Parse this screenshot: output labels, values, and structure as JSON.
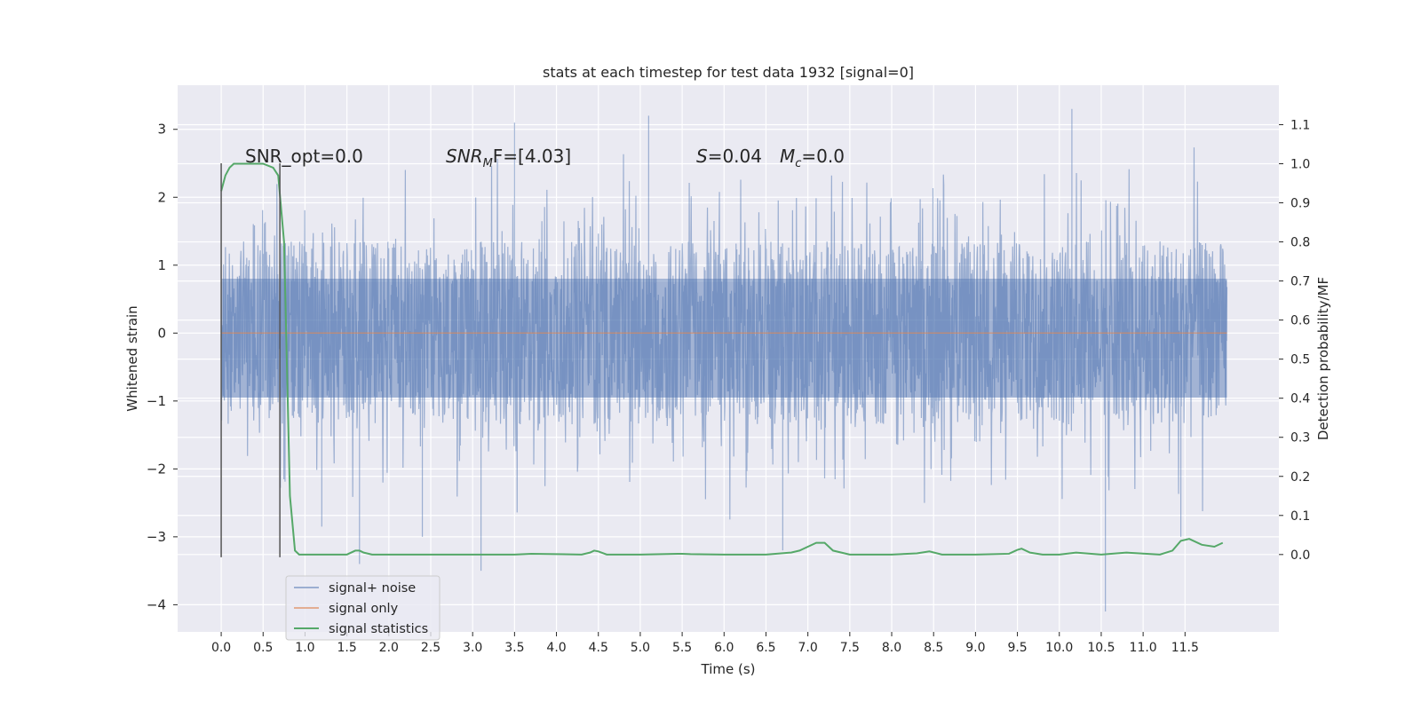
{
  "chart_data": {
    "type": "line",
    "title": "stats at each timestep for test data 1932 [signal=0]",
    "xlabel": "Time (s)",
    "ylabel": "Whitened strain",
    "y2label": "Detection probability/MF",
    "xlim": [
      -0.52,
      12.62
    ],
    "ylim": [
      -4.4,
      3.65
    ],
    "y2lim": [
      -0.198,
      1.201
    ],
    "xticks": [
      0.0,
      0.5,
      1.0,
      1.5,
      2.0,
      2.5,
      3.0,
      3.5,
      4.0,
      4.5,
      5.0,
      5.5,
      6.0,
      6.5,
      7.0,
      7.5,
      8.0,
      8.5,
      9.0,
      9.5,
      10.0,
      10.5,
      11.0,
      11.5
    ],
    "xtick_labels": [
      "0.0",
      "0.5",
      "1.0",
      "1.5",
      "2.0",
      "2.5",
      "3.0",
      "3.5",
      "4.0",
      "4.5",
      "5.0",
      "5.5",
      "6.0",
      "6.5",
      "7.0",
      "7.5",
      "8.0",
      "8.5",
      "9.0",
      "9.5",
      "10.0",
      "10.5",
      "11.0",
      "11.5"
    ],
    "yticks": [
      3,
      2,
      1,
      0,
      -1,
      -2,
      -3,
      -4
    ],
    "ytick_labels": [
      "3",
      "2",
      "1",
      "0",
      "−1",
      "−2",
      "−3",
      "−4"
    ],
    "y2ticks": [
      1.1,
      1.0,
      0.9,
      0.8,
      0.7,
      0.6,
      0.5,
      0.4,
      0.3,
      0.2,
      0.1,
      0.0
    ],
    "y2tick_labels": [
      "1.1",
      "1.0",
      "0.9",
      "0.8",
      "0.7",
      "0.6",
      "0.5",
      "0.4",
      "0.3",
      "0.2",
      "0.1",
      "0.0"
    ],
    "grid": true,
    "legend_position": "lower-left",
    "annotations": {
      "snr_opt": "SNR_opt=0.0",
      "snr_mf_base": "SNR",
      "snr_mf_sub": "M",
      "snr_mf_rest": "F=[4.03]",
      "s_label": "S",
      "s_value": "=0.04",
      "mc_label": "M",
      "mc_sub": "c",
      "mc_value": "=0.0"
    },
    "vlines_x": [
      0.0,
      0.7
    ],
    "noise_envelope": {
      "t_range": [
        0.0,
        12.0
      ],
      "core_band": [
        -1.0,
        1.35
      ],
      "typical_extremes": [
        -2.6,
        2.8
      ],
      "spikes": [
        {
          "t": 1.65,
          "y": -3.4
        },
        {
          "t": 3.1,
          "y": -3.5
        },
        {
          "t": 10.55,
          "y": -4.1
        },
        {
          "t": 10.15,
          "y": 3.3
        },
        {
          "t": 5.1,
          "y": 3.2
        },
        {
          "t": 3.5,
          "y": 3.1
        },
        {
          "t": 6.7,
          "y": -3.2
        },
        {
          "t": 2.4,
          "y": -3.0
        },
        {
          "t": 11.45,
          "y": -3.0
        },
        {
          "t": 1.2,
          "y": -2.85
        }
      ]
    },
    "series": [
      {
        "name": "signal+ noise",
        "color": "#4c72b0",
        "opacity": 0.5,
        "axis": "left",
        "kind": "noise"
      },
      {
        "name": "signal only",
        "color": "#dd8452",
        "axis": "left",
        "x": [
          0.0,
          12.0
        ],
        "y": [
          0.0,
          0.0
        ]
      },
      {
        "name": "signal statistics",
        "color": "#55a868",
        "axis": "right",
        "x": [
          0.0,
          0.05,
          0.1,
          0.15,
          0.2,
          0.3,
          0.5,
          0.62,
          0.68,
          0.75,
          0.82,
          0.88,
          0.93,
          1.0,
          1.5,
          1.6,
          1.65,
          1.7,
          1.8,
          2.5,
          3.5,
          3.7,
          4.3,
          4.4,
          4.45,
          4.5,
          4.6,
          5.0,
          5.5,
          5.6,
          6.0,
          6.5,
          6.8,
          6.9,
          7.0,
          7.1,
          7.2,
          7.3,
          7.5,
          8.0,
          8.3,
          8.45,
          8.6,
          9.0,
          9.4,
          9.5,
          9.55,
          9.65,
          9.8,
          10.0,
          10.2,
          10.5,
          10.8,
          11.2,
          11.35,
          11.45,
          11.55,
          11.7,
          11.85,
          11.95
        ],
        "y": [
          0.93,
          0.97,
          0.99,
          1.0,
          1.0,
          1.0,
          1.0,
          0.99,
          0.97,
          0.8,
          0.15,
          0.01,
          0.0,
          0.0,
          0.0,
          0.01,
          0.01,
          0.005,
          0.0,
          0.0,
          0.0,
          0.002,
          0.0,
          0.005,
          0.01,
          0.008,
          0.0,
          0.0,
          0.002,
          0.001,
          0.0,
          0.0,
          0.005,
          0.01,
          0.02,
          0.03,
          0.03,
          0.01,
          0.0,
          0.0,
          0.003,
          0.008,
          0.0,
          0.0,
          0.002,
          0.012,
          0.015,
          0.005,
          0.0,
          0.0,
          0.005,
          0.0,
          0.005,
          0.0,
          0.01,
          0.035,
          0.04,
          0.025,
          0.02,
          0.03
        ]
      }
    ],
    "legend": [
      "signal+ noise",
      "signal only",
      "signal statistics"
    ]
  }
}
